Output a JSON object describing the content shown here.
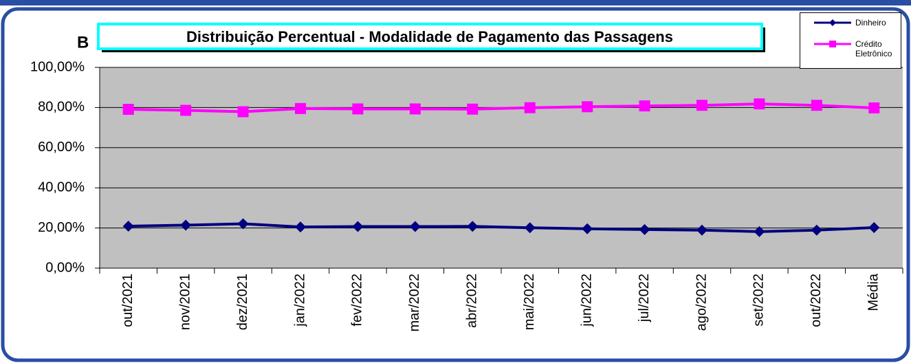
{
  "chart_data": {
    "type": "line",
    "panel_label": "B",
    "title": "Distribuição Percentual - Modalidade de Pagamento das Passagens",
    "categories": [
      "out/2021",
      "nov/2021",
      "dez/2021",
      "jan/2022",
      "fev/2022",
      "mar/2022",
      "abr/2022",
      "mai/2022",
      "jun/2022",
      "jul/2022",
      "ago/2022",
      "set/2022",
      "out/2022",
      "Média"
    ],
    "series": [
      {
        "name": "Dinheiro",
        "color": "#000080",
        "marker": "diamond",
        "values": [
          20.9,
          21.4,
          22.1,
          20.5,
          20.7,
          20.7,
          20.8,
          20.1,
          19.6,
          19.2,
          18.9,
          18.2,
          18.9,
          20.2
        ]
      },
      {
        "name": "Crédito Eletrônico",
        "color": "#ff00ff",
        "marker": "square",
        "values": [
          79.1,
          78.6,
          77.9,
          79.5,
          79.3,
          79.3,
          79.2,
          79.9,
          80.4,
          80.8,
          81.1,
          81.8,
          81.1,
          79.8
        ]
      }
    ],
    "ylim": [
      0,
      100
    ],
    "yticks": [
      {
        "value": 0,
        "label": "0,00%"
      },
      {
        "value": 20,
        "label": "20,00%"
      },
      {
        "value": 40,
        "label": "40,00%"
      },
      {
        "value": 60,
        "label": "60,00%"
      },
      {
        "value": 80,
        "label": "80,00%"
      },
      {
        "value": 100,
        "label": "100,00%"
      }
    ],
    "grid": true,
    "legend": "upper right"
  }
}
